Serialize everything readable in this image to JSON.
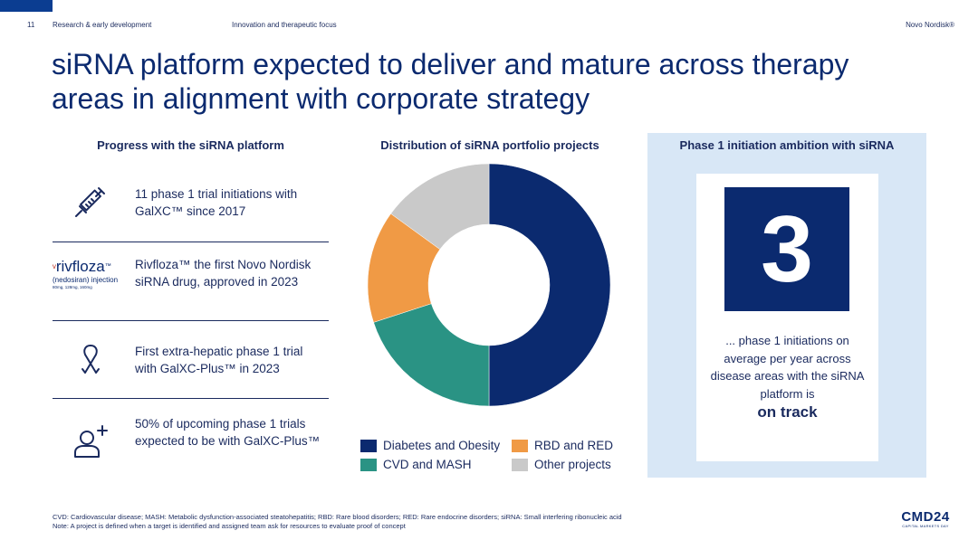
{
  "header": {
    "page_number": "11",
    "section": "Research & early development",
    "subsection": "Innovation and therapeutic focus",
    "company": "Novo Nordisk®"
  },
  "title": "siRNA platform expected to deliver and mature across therapy areas in alignment with corporate strategy",
  "progress": {
    "heading": "Progress with the siRNA platform",
    "items": [
      {
        "icon": "syringe-icon",
        "text": "11 phase 1 trial initiations with GalXC™ since 2017"
      },
      {
        "icon": "rivfloza-logo",
        "text": "Rivfloza™ the first Novo Nordisk siRNA drug, approved in 2023",
        "logo_name": "rivfloza",
        "logo_sub": "(nedosiran) injection",
        "logo_small": "80mg, 128mg, 160mg"
      },
      {
        "icon": "awareness-ribbon-icon",
        "text": "First extra-hepatic phase 1 trial with GalXC-Plus™ in 2023"
      },
      {
        "icon": "add-person-icon",
        "text": "50% of upcoming phase 1 trials expected to be with GalXC-Plus™"
      }
    ]
  },
  "chart_data": {
    "type": "pie",
    "title": "Distribution of siRNA portfolio projects",
    "categories": [
      "Diabetes and Obesity",
      "CVD and MASH",
      "RBD and RED",
      "Other projects"
    ],
    "values": [
      50,
      20,
      15,
      15
    ],
    "colors": [
      "#0b2a6f",
      "#2a9384",
      "#f09a45",
      "#c9c9c9"
    ],
    "legend_position": "bottom"
  },
  "ambition": {
    "heading": "Phase 1 initiation ambition with siRNA",
    "number": "3",
    "text": "... phase 1 initiations on average per year across disease areas with the siRNA platform is",
    "status": "on track"
  },
  "footnotes": [
    "CVD: Cardiovascular disease; MASH: Metabolic dysfunction-associated steatohepatitis; RBD: Rare blood disorders; RED: Rare endocrine disorders; siRNA: Small interfering ribonucleic acid",
    "Note: A project is defined when a target is identified and assigned team ask for resources to evaluate proof of concept"
  ],
  "logo": {
    "main": "CMD24",
    "sub": "CAPITAL MARKETS DAY"
  },
  "colors": {
    "navy": "#0b2a6f",
    "accent_blue": "#0b3d91",
    "panel_bg": "#d8e7f6"
  }
}
